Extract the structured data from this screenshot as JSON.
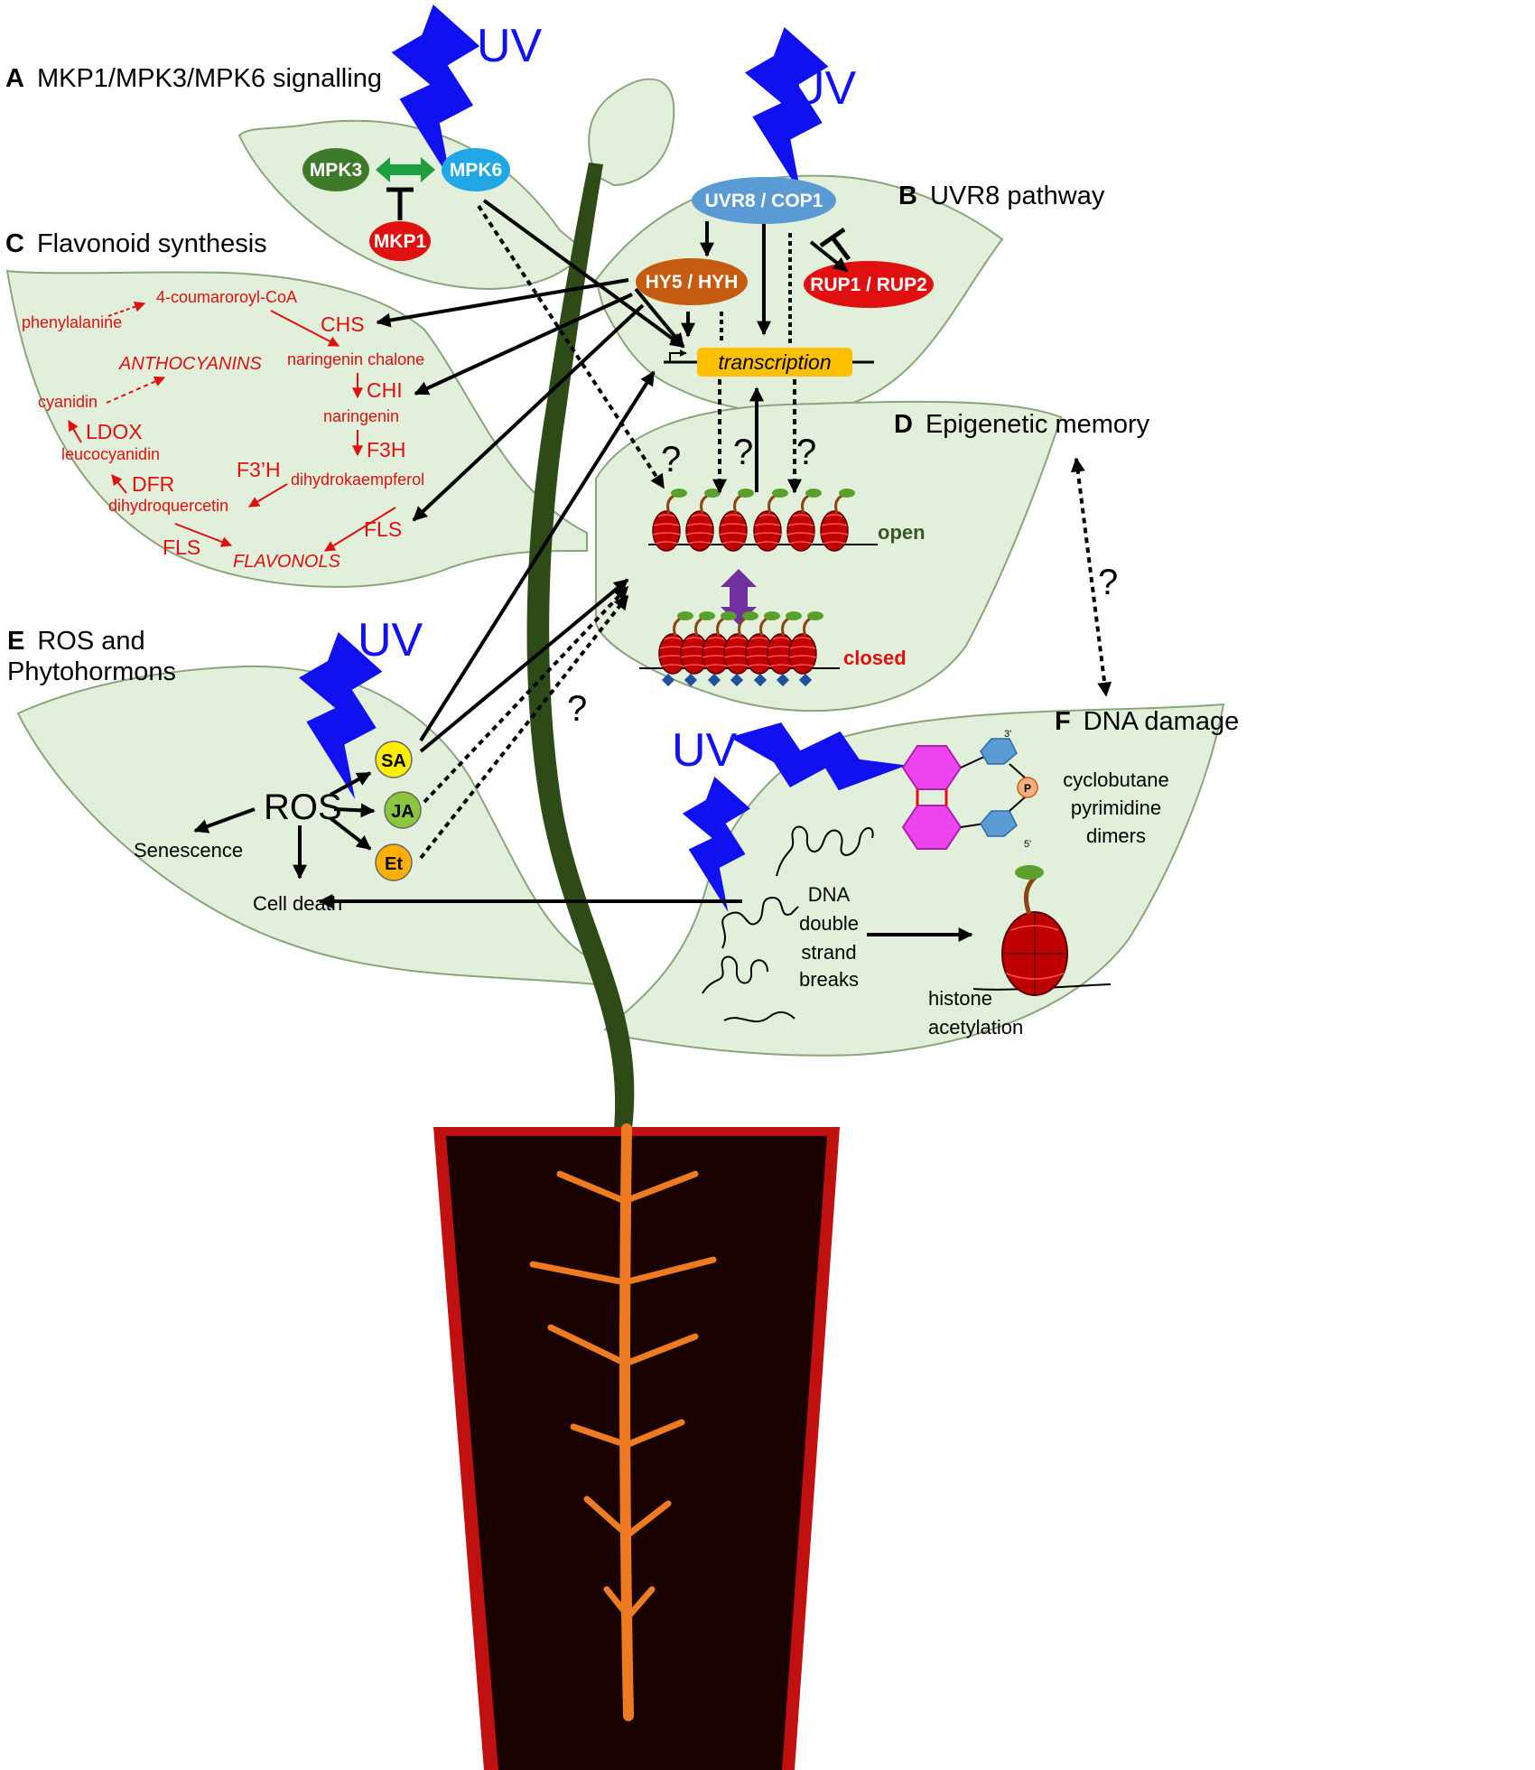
{
  "panels": {
    "A": {
      "letter": "A",
      "title": "MKP1/MPK3/MPK6 signalling"
    },
    "B": {
      "letter": "B",
      "title": "UVR8 pathway"
    },
    "C": {
      "letter": "C",
      "title": "Flavonoid synthesis"
    },
    "D": {
      "letter": "D",
      "title": "Epigenetic memory"
    },
    "E": {
      "letter": "E",
      "title_line1": "ROS and",
      "title_line2": "Phytohormons"
    },
    "F": {
      "letter": "F",
      "title": "DNA damage"
    }
  },
  "uv_label": "UV",
  "question_mark": "?",
  "nodes": {
    "mpk3": "MPK3",
    "mpk6": "MPK6",
    "mkp1": "MKP1",
    "uvr8_cop1": "UVR8 / COP1",
    "hy5_hyh": "HY5 / HYH",
    "rup1_rup2": "RUP1 / RUP2",
    "transcription": "transcription",
    "sa": "SA",
    "ja": "JA",
    "et": "Et",
    "ros": "ROS"
  },
  "flavonoid": {
    "phenylalanine": "phenylalanine",
    "coumaroyl": "4-coumaroroyl-CoA",
    "chs": "CHS",
    "naringenin_chalone": "naringenin chalone",
    "chi": "CHI",
    "naringenin": "naringenin",
    "f3h": "F3H",
    "dihydrokaempferol": "dihydrokaempferol",
    "f3ph": "F3’H",
    "dihydroquercetin": "dihydroquercetin",
    "dfr": "DFR",
    "leucocyanidin": "leucocyanidin",
    "ldox": "LDOX",
    "cyanidin": "cyanidin",
    "anthocyanins": "ANTHOCYANINS",
    "fls_left": "FLS",
    "fls_right": "FLS",
    "flavonols": "FLAVONOLS"
  },
  "chromatin": {
    "open": "open",
    "closed": "closed"
  },
  "ros_panel": {
    "senescence": "Senescence",
    "cell_death": "Cell death"
  },
  "dna_panel": {
    "cpd_line1": "cyclobutane",
    "cpd_line2": "pyrimidine",
    "cpd_line3": "dimers",
    "dsb_line1": "DNA",
    "dsb_line2": "double",
    "dsb_line3": "strand",
    "dsb_line4": "breaks",
    "hist_line1": "histone",
    "hist_line2": "acetylation",
    "three_prime": "3'",
    "five_prime": "5'",
    "phosphate": "P"
  },
  "colors": {
    "leaf_fill": "#e2efda",
    "leaf_stroke": "#8aa57c",
    "stem": "#2d4a17",
    "uv_blue": "#1010f0",
    "pot": "#1a0200",
    "pot_rim": "#c01010",
    "root": "#ee7b22",
    "mpk3": "#3d7a2a",
    "mpk6": "#22a7e6",
    "mkp1": "#e01010",
    "uvr8": "#5b9bd5",
    "hy5": "#c55a11",
    "rup": "#e01010",
    "transcription": "#ffc000",
    "sa": "#ffee00",
    "ja": "#8cc63f",
    "et": "#ffb000",
    "enzyme_red": "#e01010",
    "open_green": "#385723",
    "closed_red": "#e01010",
    "double_arrow": "#7030a0"
  }
}
